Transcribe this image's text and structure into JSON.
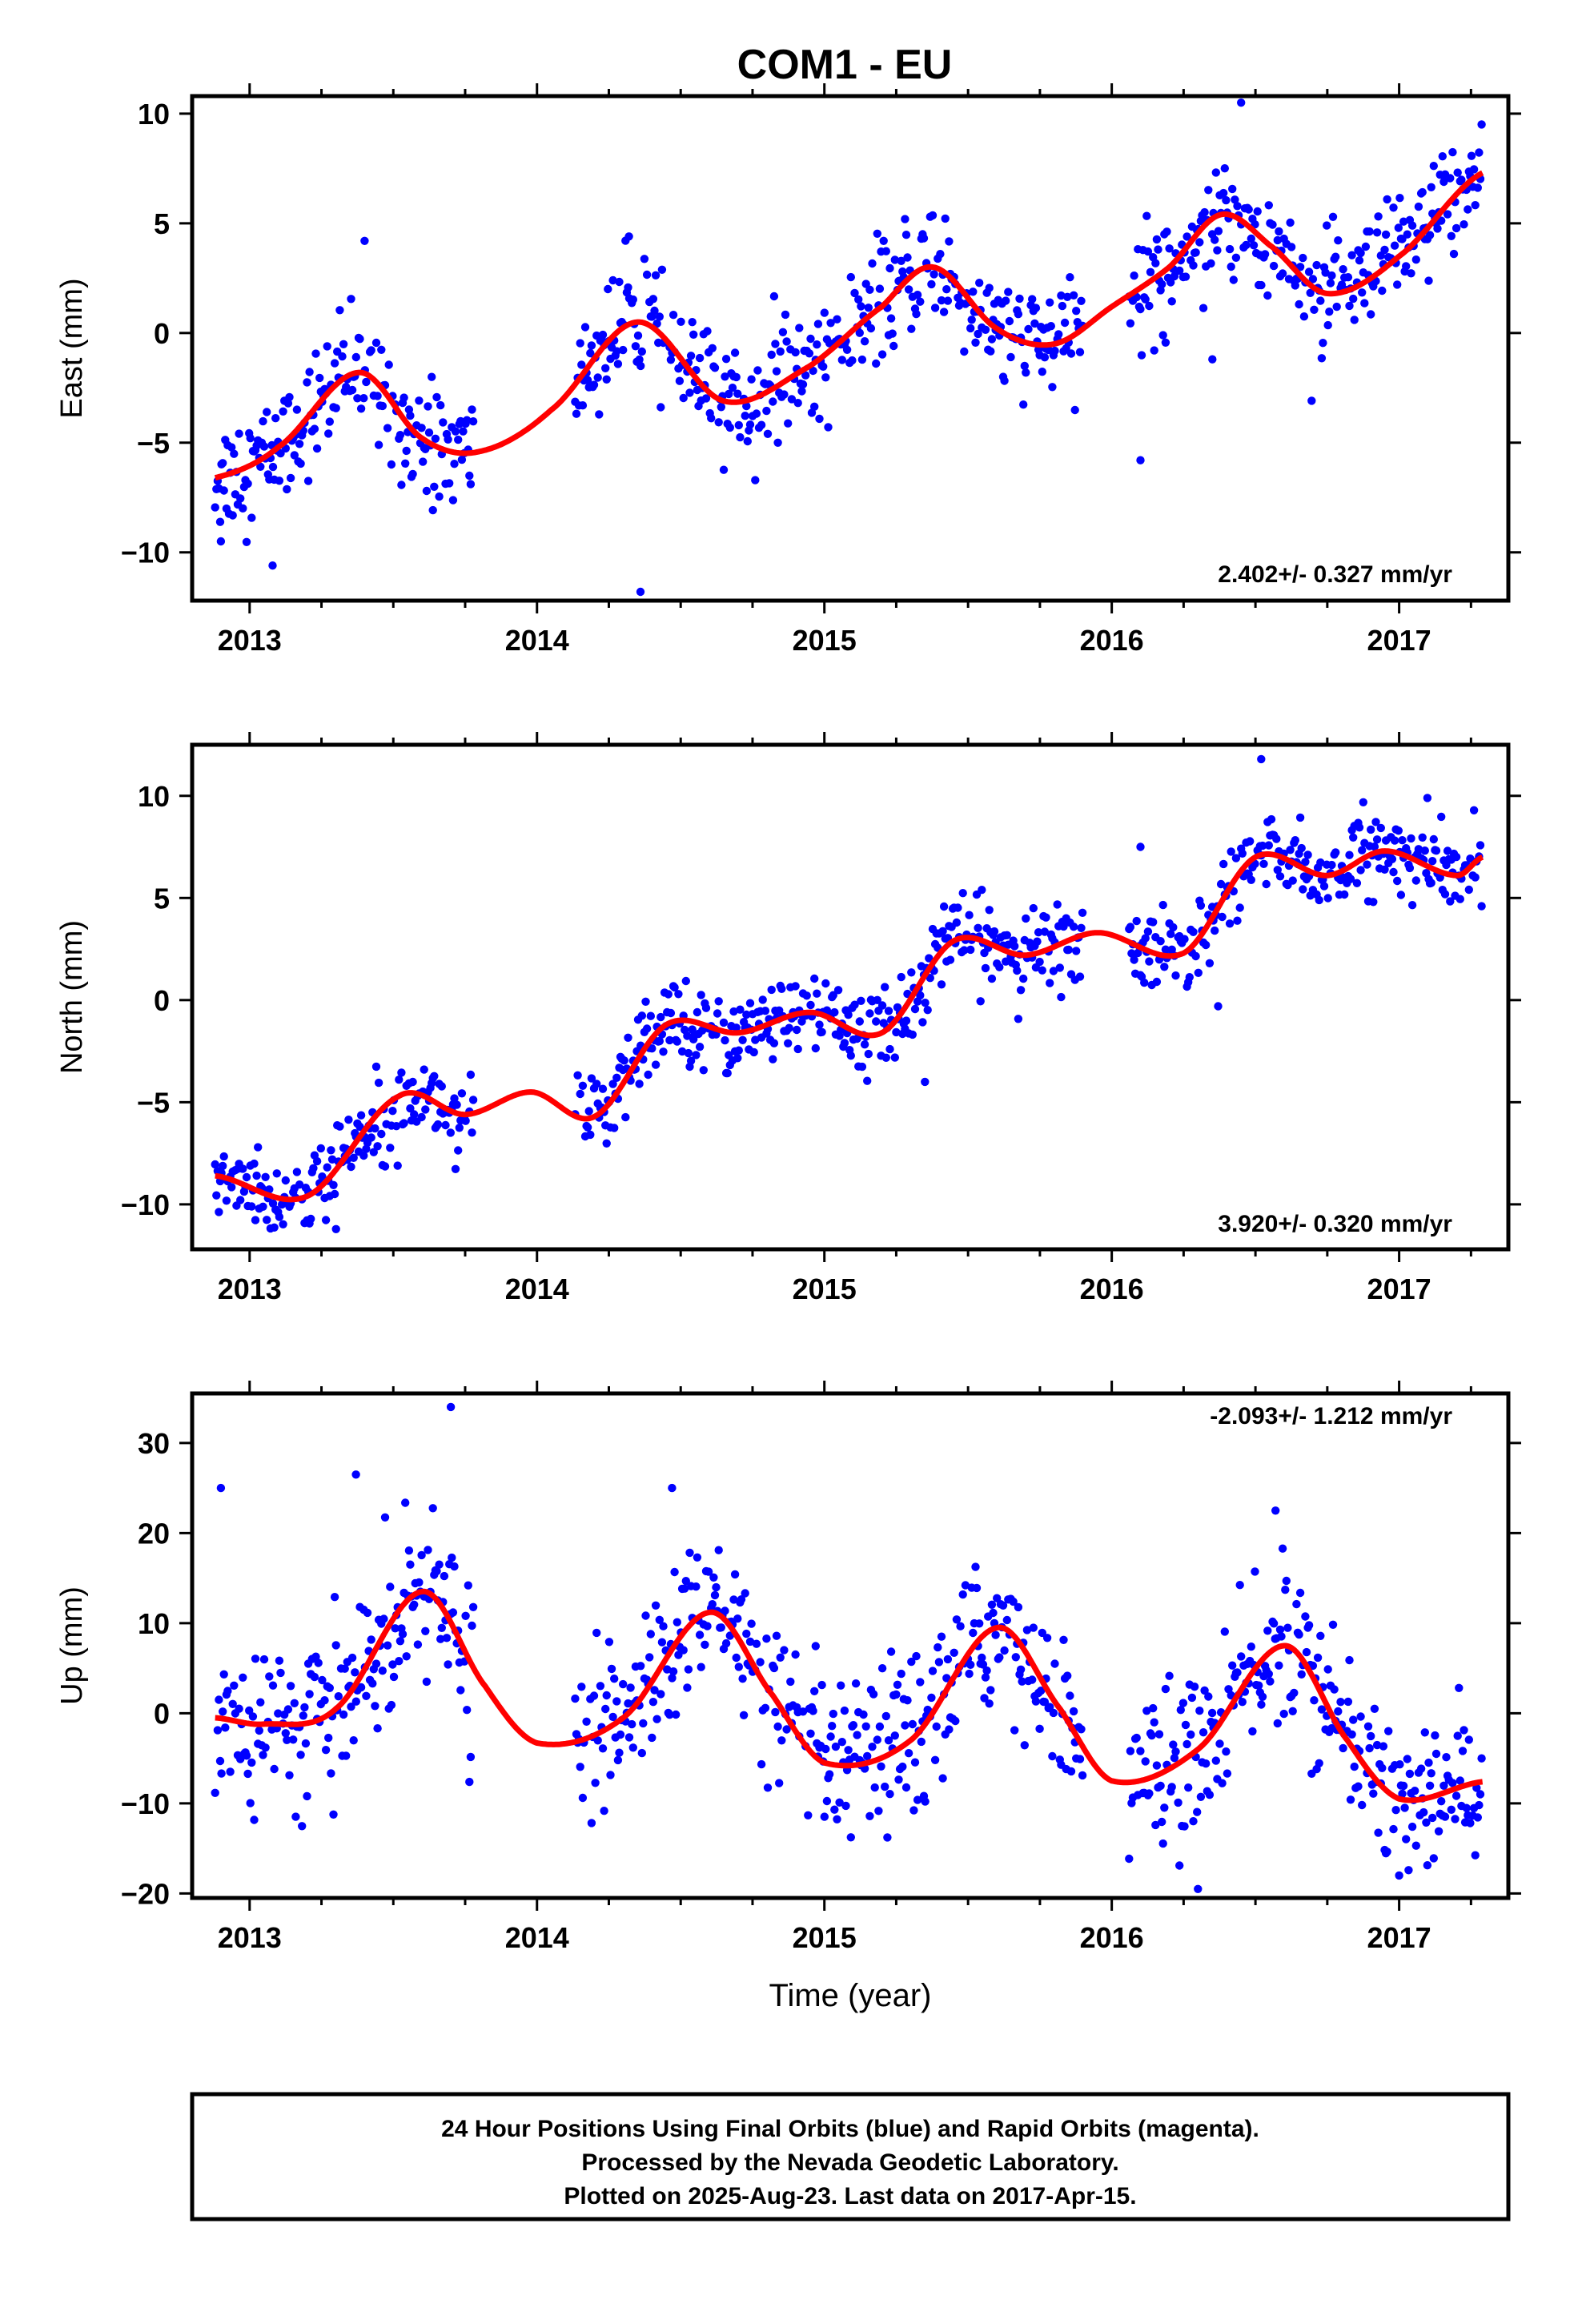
{
  "title": "COM1 - EU",
  "xlabel": "Time (year)",
  "footer": {
    "line1": "24 Hour Positions Using Final Orbits (blue) and Rapid Orbits (magenta).",
    "line2": "Processed by the Nevada Geodetic Laboratory.",
    "line3": "Plotted on 2025-Aug-23. Last data on 2017-Apr-15."
  },
  "colors": {
    "points": "#0000ff",
    "fit": "#ff0000",
    "frame": "#000000"
  },
  "chart_data": [
    {
      "type": "scatter",
      "component": "east",
      "ylabel": "East (mm)",
      "rate_label": "2.402+/- 0.327 mm/yr",
      "xlim": [
        2012.8,
        2017.38
      ],
      "ylim": [
        -12.2,
        10.8
      ],
      "xticks": [
        2013,
        2014,
        2015,
        2016,
        2017
      ],
      "yticks": [
        -10,
        -5,
        0,
        5,
        10
      ],
      "data_range": [
        2012.88,
        2017.29
      ],
      "gaps": [
        [
          2013.78,
          2014.13
        ],
        [
          2015.9,
          2016.06
        ]
      ],
      "fit": {
        "x": [
          2012.88,
          2013.1,
          2013.38,
          2013.6,
          2013.8,
          2014.05,
          2014.35,
          2014.65,
          2014.95,
          2015.2,
          2015.38,
          2015.6,
          2015.8,
          2016.0,
          2016.2,
          2016.38,
          2016.55,
          2016.75,
          2017.0,
          2017.29
        ],
        "y": [
          -6.6,
          -5.2,
          -1.8,
          -4.8,
          -5.4,
          -3.5,
          0.5,
          -3.1,
          -1.5,
          1.2,
          3.0,
          0.2,
          -0.5,
          1.2,
          3.0,
          5.4,
          4.0,
          1.8,
          3.5,
          7.3
        ]
      },
      "noise": 1.3,
      "outliers": [
        [
          2013.4,
          4.2
        ],
        [
          2014.32,
          4.4
        ],
        [
          2014.36,
          -11.8
        ],
        [
          2012.9,
          -9.5
        ],
        [
          2013.08,
          -10.6
        ],
        [
          2016.1,
          -5.8
        ],
        [
          2016.45,
          10.5
        ],
        [
          2016.35,
          -1.2
        ]
      ]
    },
    {
      "type": "scatter",
      "component": "north",
      "ylabel": "North (mm)",
      "rate_label": "3.920+/- 0.320 mm/yr",
      "xlim": [
        2012.8,
        2017.38
      ],
      "ylim": [
        -12.2,
        12.5
      ],
      "xticks": [
        2013,
        2014,
        2015,
        2016,
        2017
      ],
      "yticks": [
        -10,
        -5,
        0,
        5,
        10
      ],
      "data_range": [
        2012.88,
        2017.29
      ],
      "gaps": [
        [
          2013.78,
          2014.13
        ],
        [
          2015.9,
          2016.06
        ]
      ],
      "fit": {
        "x": [
          2012.88,
          2013.2,
          2013.52,
          2013.75,
          2013.98,
          2014.2,
          2014.45,
          2014.7,
          2014.95,
          2015.2,
          2015.45,
          2015.7,
          2015.95,
          2016.25,
          2016.5,
          2016.75,
          2016.95,
          2017.2,
          2017.29
        ],
        "y": [
          -8.6,
          -9.6,
          -4.7,
          -5.6,
          -4.5,
          -5.7,
          -1.2,
          -1.6,
          -0.6,
          -1.6,
          2.9,
          2.2,
          3.3,
          2.3,
          7.0,
          6.1,
          7.3,
          6.1,
          7.0
        ]
      },
      "noise": 1.0,
      "outliers": [
        [
          2016.52,
          11.8
        ],
        [
          2016.1,
          7.5
        ],
        [
          2015.35,
          -4.0
        ],
        [
          2016.37,
          -0.3
        ]
      ]
    },
    {
      "type": "scatter",
      "component": "up",
      "ylabel": "Up (mm)",
      "rate_label": "-2.093+/- 1.212 mm/yr",
      "xlim": [
        2012.8,
        2017.38
      ],
      "ylim": [
        -20.5,
        35.5
      ],
      "xticks": [
        2013,
        2014,
        2015,
        2016,
        2017
      ],
      "yticks": [
        -20,
        -10,
        0,
        10,
        20,
        30
      ],
      "data_range": [
        2012.88,
        2017.29
      ],
      "gaps": [
        [
          2013.78,
          2014.13
        ],
        [
          2015.9,
          2016.06
        ]
      ],
      "fit": {
        "x": [
          2012.88,
          2013.05,
          2013.3,
          2013.6,
          2013.82,
          2014.0,
          2014.3,
          2014.6,
          2014.82,
          2015.0,
          2015.3,
          2015.6,
          2015.82,
          2016.0,
          2016.3,
          2016.6,
          2016.82,
          2017.0,
          2017.29
        ],
        "y": [
          -0.5,
          -1.2,
          0.5,
          13.5,
          3.0,
          -3.3,
          -0.5,
          11.2,
          2.0,
          -5.5,
          -3.0,
          9.5,
          0.5,
          -7.5,
          -4.0,
          7.5,
          -3.0,
          -9.5,
          -7.6
        ]
      },
      "noise": 4.3,
      "outliers": [
        [
          2013.7,
          34.0
        ],
        [
          2012.9,
          25.0
        ],
        [
          2013.37,
          26.5
        ],
        [
          2014.47,
          25.0
        ],
        [
          2016.57,
          22.5
        ],
        [
          2016.3,
          -19.5
        ],
        [
          2017.0,
          -18.0
        ]
      ]
    }
  ]
}
